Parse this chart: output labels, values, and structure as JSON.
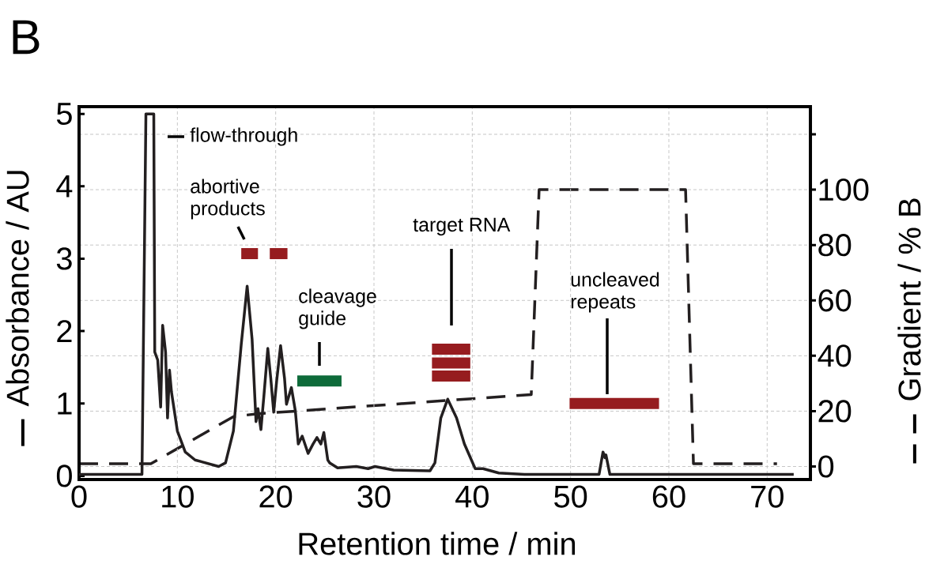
{
  "chart_data": {
    "type": "line",
    "title": "B",
    "xlabel": "Retention time / min",
    "ylabel": "Absorbance / AU",
    "y2label": "Gradient / % B",
    "xlim": [
      0,
      74.4
    ],
    "xticks": [
      0,
      10,
      20,
      30,
      40,
      50,
      60,
      70
    ],
    "ylim": [
      -0.05,
      5.1
    ],
    "yticks": [
      0,
      1,
      2,
      3,
      4,
      5
    ],
    "y2lim": [
      -4.7,
      130
    ],
    "y2ticks": [
      0,
      20,
      40,
      60,
      80,
      100,
      {
        "value": 120,
        "label": null
      }
    ],
    "grid": true,
    "series": [
      {
        "color": "#231f20",
        "line_style": "solid",
        "x": [
          0,
          6.4,
          6.8,
          7.6,
          7.7,
          8.0,
          8.3,
          8.5,
          8.8,
          9.0,
          9.2,
          9.4,
          10.0,
          10.8,
          11.8,
          14.2,
          14.9,
          15.7,
          16.5,
          17.1,
          17.6,
          18.0,
          18.2,
          18.5,
          18.8,
          19.2,
          19.5,
          19.8,
          20.1,
          20.5,
          20.9,
          21.1,
          21.6,
          22.0,
          22.3,
          22.7,
          23.3,
          23.8,
          24.2,
          24.6,
          24.9,
          25.3,
          25.5,
          26.3,
          28.2,
          29.4,
          30.1,
          32.0,
          35.7,
          36.2,
          36.8,
          37.5,
          38.4,
          39.2,
          40.3,
          41.1,
          42.7,
          45.3,
          52.9,
          53.3,
          53.5,
          53.6,
          54.0,
          72.7
        ],
        "values": [
          0.02,
          0.02,
          5.0,
          5.0,
          1.71,
          1.6,
          0.95,
          2.08,
          1.71,
          0.8,
          1.46,
          1.16,
          0.62,
          0.33,
          0.22,
          0.13,
          0.18,
          0.62,
          1.82,
          2.62,
          1.89,
          0.75,
          0.93,
          0.64,
          1.1,
          1.76,
          1.35,
          0.88,
          1.31,
          1.8,
          1.35,
          0.99,
          1.22,
          0.9,
          0.44,
          0.55,
          0.31,
          0.44,
          0.53,
          0.44,
          0.6,
          0.22,
          0.18,
          0.11,
          0.13,
          0.1,
          0.13,
          0.08,
          0.07,
          0.18,
          0.8,
          1.06,
          0.8,
          0.44,
          0.1,
          0.1,
          0.04,
          0.02,
          0.02,
          0.33,
          0.25,
          0.29,
          0.02,
          0.02
        ]
      },
      {
        "axis": "y2",
        "color": "#231f20",
        "line_style": "dashed",
        "x": [
          0,
          7.3,
          15.7,
          18,
          46,
          46.8,
          61.7,
          62.5,
          71
        ],
        "values": [
          1,
          1,
          18,
          19,
          26,
          100,
          100,
          1,
          1
        ]
      },
      {
        "color": "#961c1f",
        "line_style": "solid",
        "x": [
          16.5,
          18.2
        ],
        "values": [
          3.07,
          3.07
        ]
      },
      {
        "color": "#961c1f",
        "line_style": "solid",
        "x": [
          19.4,
          21.2
        ],
        "values": [
          3.07,
          3.07
        ]
      },
      {
        "color": "#0e6b3a",
        "line_style": "solid",
        "x": [
          22.2,
          26.7
        ],
        "values": [
          1.31,
          1.31
        ]
      },
      {
        "color": "#961c1f",
        "line_style": "solid",
        "x": [
          35.9,
          39.8
        ],
        "values": [
          1.75,
          1.75
        ]
      },
      {
        "color": "#961c1f",
        "line_style": "solid",
        "x": [
          35.9,
          39.8
        ],
        "values": [
          1.56,
          1.56
        ]
      },
      {
        "color": "#961c1f",
        "line_style": "solid",
        "x": [
          35.9,
          39.8
        ],
        "values": [
          1.38,
          1.38
        ]
      },
      {
        "color": "#961c1f",
        "line_style": "solid",
        "x": [
          49.9,
          59.0
        ],
        "values": [
          1.0,
          1.0
        ]
      }
    ],
    "annotations": [
      "flow-through",
      "abortive products",
      "cleavage guide",
      "target RNA",
      "uncleaved repeats"
    ]
  }
}
